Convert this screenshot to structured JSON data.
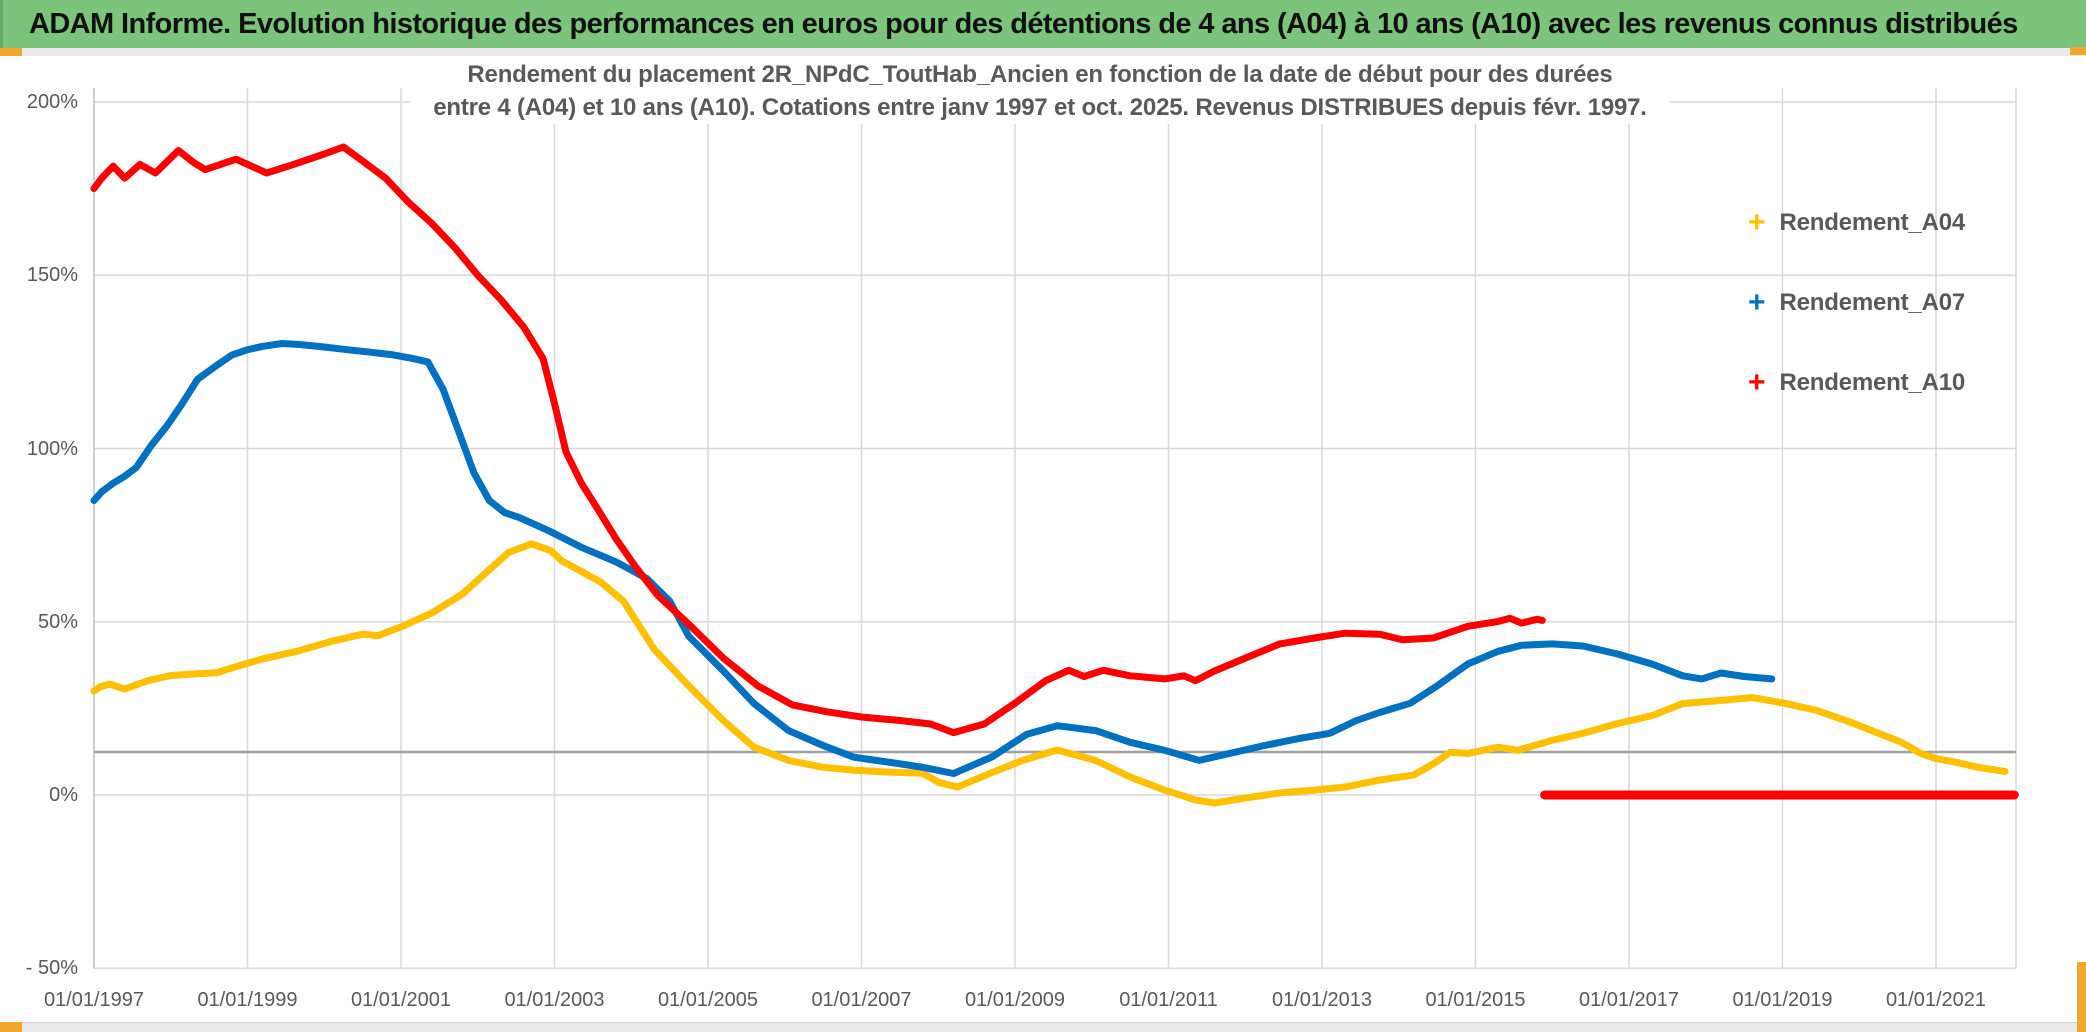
{
  "window": {
    "title": "ADAM Informe. Evolution historique des performances en euros pour des détentions de 4 ans (A04) à 10 ans (A10) avec les revenus connus distribués",
    "title_bar_color": "#7CC47C",
    "accent_color": "#F2A62B"
  },
  "chart_data": {
    "type": "line",
    "title_line1": "Rendement du placement 2R_NPdC_ToutHab_Ancien en fonction de la date de début pour des durées",
    "title_line2": "entre 4 (A04) et 10 ans (A10). Cotations entre janv 1997 et oct. 2025. Revenus DISTRIBUES depuis févr. 1997.",
    "ylabel": "",
    "xlabel": "",
    "grid": true,
    "legend_position": "right",
    "text_color": "#595959",
    "grid_color": "#D9D9D9",
    "axis_line_color": "#BFBFBF",
    "dark_reference_line": {
      "value_pct": 12.4,
      "color": "#A0A0A0"
    },
    "y_axis": {
      "min": -50,
      "max": 200,
      "step": 50,
      "ticks": [
        {
          "label": "200%",
          "value": 200
        },
        {
          "label": "150%",
          "value": 150
        },
        {
          "label": "100%",
          "value": 100
        },
        {
          "label": "50%",
          "value": 50
        },
        {
          "label": "0%",
          "value": 0
        },
        {
          "label": "- 50%",
          "value": -50
        }
      ]
    },
    "x_axis": {
      "start_year": 1997,
      "end_year": 2022.05,
      "ticks": [
        {
          "label": "01/01/1997",
          "year": 1997
        },
        {
          "label": "01/01/1999",
          "year": 1999
        },
        {
          "label": "01/01/2001",
          "year": 2001
        },
        {
          "label": "01/01/2003",
          "year": 2003
        },
        {
          "label": "01/01/2005",
          "year": 2005
        },
        {
          "label": "01/01/2007",
          "year": 2007
        },
        {
          "label": "01/01/2009",
          "year": 2009
        },
        {
          "label": "01/01/2011",
          "year": 2011
        },
        {
          "label": "01/01/2013",
          "year": 2013
        },
        {
          "label": "01/01/2015",
          "year": 2015
        },
        {
          "label": "01/01/2017",
          "year": 2017
        },
        {
          "label": "01/01/2019",
          "year": 2019
        },
        {
          "label": "01/01/2021",
          "year": 2021
        }
      ]
    },
    "series": [
      {
        "name": "Rendement_A04",
        "color": "#FFC000",
        "marker": "+",
        "in_legend": true,
        "width": 7,
        "points": [
          [
            1997.0,
            30
          ],
          [
            1997.08,
            31.2
          ],
          [
            1997.2,
            32
          ],
          [
            1997.4,
            30.6
          ],
          [
            1997.7,
            33
          ],
          [
            1998.0,
            34.5
          ],
          [
            1998.35,
            35
          ],
          [
            1998.6,
            35.3
          ],
          [
            1998.8,
            36.7
          ],
          [
            1999.2,
            39.3
          ],
          [
            1999.65,
            41.5
          ],
          [
            2000.1,
            44.4
          ],
          [
            2000.5,
            46.4
          ],
          [
            2000.7,
            46
          ],
          [
            2001.0,
            48.5
          ],
          [
            2001.4,
            52.5
          ],
          [
            2001.8,
            58
          ],
          [
            2002.1,
            64
          ],
          [
            2002.4,
            70
          ],
          [
            2002.7,
            72.5
          ],
          [
            2002.95,
            70.5
          ],
          [
            2003.1,
            67.5
          ],
          [
            2003.35,
            64.5
          ],
          [
            2003.6,
            61.5
          ],
          [
            2003.9,
            55.9
          ],
          [
            2004.1,
            49
          ],
          [
            2004.3,
            42
          ],
          [
            2004.75,
            31.5
          ],
          [
            2005.2,
            21.5
          ],
          [
            2005.6,
            13.8
          ],
          [
            2006.05,
            10
          ],
          [
            2006.5,
            8
          ],
          [
            2006.9,
            7.2
          ],
          [
            2007.35,
            6.6
          ],
          [
            2007.8,
            6.3
          ],
          [
            2008.0,
            3.7
          ],
          [
            2008.25,
            2.3
          ],
          [
            2008.65,
            6
          ],
          [
            2009.1,
            10
          ],
          [
            2009.55,
            13
          ],
          [
            2010.05,
            10
          ],
          [
            2010.5,
            5.2
          ],
          [
            2010.95,
            1.4
          ],
          [
            2011.35,
            -1.4
          ],
          [
            2011.6,
            -2.3
          ],
          [
            2012.0,
            -0.9
          ],
          [
            2012.45,
            0.6
          ],
          [
            2012.9,
            1.4
          ],
          [
            2013.3,
            2.3
          ],
          [
            2013.75,
            4.3
          ],
          [
            2014.2,
            5.8
          ],
          [
            2014.45,
            9
          ],
          [
            2014.67,
            12.3
          ],
          [
            2014.9,
            12
          ],
          [
            2015.3,
            13.8
          ],
          [
            2015.55,
            12.9
          ],
          [
            2016.0,
            15.8
          ],
          [
            2016.4,
            17.8
          ],
          [
            2016.85,
            20.6
          ],
          [
            2017.3,
            22.9
          ],
          [
            2017.7,
            26.4
          ],
          [
            2018.15,
            27.2
          ],
          [
            2018.6,
            28.1
          ],
          [
            2019.0,
            26.6
          ],
          [
            2019.45,
            24.4
          ],
          [
            2019.9,
            20.9
          ],
          [
            2020.25,
            17.8
          ],
          [
            2020.55,
            15.2
          ],
          [
            2020.8,
            12
          ],
          [
            2021.0,
            10.5
          ],
          [
            2021.25,
            9.5
          ],
          [
            2021.55,
            8
          ],
          [
            2021.9,
            6.8
          ]
        ]
      },
      {
        "name": "Rendement_A07",
        "color": "#0070C0",
        "marker": "+",
        "in_legend": true,
        "width": 7,
        "points": [
          [
            1997.0,
            85
          ],
          [
            1997.1,
            87.5
          ],
          [
            1997.25,
            90
          ],
          [
            1997.4,
            92
          ],
          [
            1997.55,
            94.5
          ],
          [
            1997.75,
            101
          ],
          [
            1997.95,
            106.5
          ],
          [
            1998.15,
            113
          ],
          [
            1998.35,
            120
          ],
          [
            1998.6,
            124
          ],
          [
            1998.8,
            127
          ],
          [
            1999.0,
            128.5
          ],
          [
            1999.2,
            129.5
          ],
          [
            1999.45,
            130.3
          ],
          [
            1999.7,
            130
          ],
          [
            2000.0,
            129.3
          ],
          [
            2000.3,
            128.5
          ],
          [
            2000.6,
            127.8
          ],
          [
            2000.9,
            127
          ],
          [
            2001.15,
            126
          ],
          [
            2001.35,
            125
          ],
          [
            2001.55,
            117
          ],
          [
            2001.75,
            105
          ],
          [
            2001.95,
            93
          ],
          [
            2002.15,
            85
          ],
          [
            2002.35,
            81.5
          ],
          [
            2002.55,
            80
          ],
          [
            2002.75,
            78
          ],
          [
            2002.95,
            76
          ],
          [
            2003.35,
            71.5
          ],
          [
            2003.8,
            67.3
          ],
          [
            2004.2,
            62.5
          ],
          [
            2004.5,
            56
          ],
          [
            2004.75,
            45.8
          ],
          [
            2005.2,
            35.8
          ],
          [
            2005.6,
            26.4
          ],
          [
            2006.05,
            18.6
          ],
          [
            2006.5,
            14.3
          ],
          [
            2006.9,
            10.9
          ],
          [
            2007.35,
            9.5
          ],
          [
            2007.8,
            8
          ],
          [
            2008.2,
            6.2
          ],
          [
            2008.7,
            11
          ],
          [
            2009.15,
            17.5
          ],
          [
            2009.55,
            20
          ],
          [
            2010.05,
            18.6
          ],
          [
            2010.5,
            15.2
          ],
          [
            2010.95,
            12.9
          ],
          [
            2011.4,
            10
          ],
          [
            2011.8,
            12
          ],
          [
            2012.25,
            14.3
          ],
          [
            2012.7,
            16.3
          ],
          [
            2013.1,
            17.8
          ],
          [
            2013.45,
            21.5
          ],
          [
            2013.75,
            23.8
          ],
          [
            2014.15,
            26.5
          ],
          [
            2014.5,
            31.5
          ],
          [
            2014.9,
            37.8
          ],
          [
            2015.3,
            41.5
          ],
          [
            2015.6,
            43.2
          ],
          [
            2016.0,
            43.6
          ],
          [
            2016.4,
            43
          ],
          [
            2016.85,
            40.7
          ],
          [
            2017.3,
            37.8
          ],
          [
            2017.7,
            34.4
          ],
          [
            2017.95,
            33.5
          ],
          [
            2018.2,
            35.2
          ],
          [
            2018.5,
            34.2
          ],
          [
            2018.86,
            33.5
          ]
        ]
      },
      {
        "name": "Rendement_A10",
        "color": "#FF0000",
        "marker": "+",
        "in_legend": true,
        "width": 7,
        "points": [
          [
            1997.0,
            175
          ],
          [
            1997.1,
            178
          ],
          [
            1997.25,
            181.5
          ],
          [
            1997.4,
            178
          ],
          [
            1997.6,
            182
          ],
          [
            1997.8,
            179.5
          ],
          [
            1998.1,
            186
          ],
          [
            1998.3,
            182.5
          ],
          [
            1998.45,
            180.5
          ],
          [
            1998.85,
            183.5
          ],
          [
            1999.25,
            179.5
          ],
          [
            1999.6,
            182
          ],
          [
            2000.0,
            185
          ],
          [
            2000.25,
            187
          ],
          [
            2000.5,
            183
          ],
          [
            2000.8,
            178
          ],
          [
            2001.1,
            171
          ],
          [
            2001.4,
            165
          ],
          [
            2001.7,
            158
          ],
          [
            2002.0,
            150
          ],
          [
            2002.3,
            143
          ],
          [
            2002.6,
            135
          ],
          [
            2002.85,
            126
          ],
          [
            2003.0,
            113
          ],
          [
            2003.15,
            99
          ],
          [
            2003.35,
            90
          ],
          [
            2003.55,
            83
          ],
          [
            2003.8,
            74
          ],
          [
            2004.05,
            66
          ],
          [
            2004.35,
            57.5
          ],
          [
            2004.75,
            49.3
          ],
          [
            2005.2,
            39.5
          ],
          [
            2005.65,
            31.5
          ],
          [
            2006.1,
            26
          ],
          [
            2006.55,
            24
          ],
          [
            2007.0,
            22.5
          ],
          [
            2007.5,
            21.5
          ],
          [
            2007.9,
            20.5
          ],
          [
            2008.2,
            18
          ],
          [
            2008.6,
            20.5
          ],
          [
            2009.0,
            26.5
          ],
          [
            2009.4,
            33
          ],
          [
            2009.7,
            36
          ],
          [
            2009.9,
            34.2
          ],
          [
            2010.15,
            36
          ],
          [
            2010.5,
            34.4
          ],
          [
            2010.95,
            33.5
          ],
          [
            2011.2,
            34.4
          ],
          [
            2011.35,
            33
          ],
          [
            2011.6,
            35.8
          ],
          [
            2012.0,
            39.5
          ],
          [
            2012.45,
            43.6
          ],
          [
            2012.9,
            45.3
          ],
          [
            2013.3,
            46.7
          ],
          [
            2013.75,
            46.4
          ],
          [
            2014.05,
            44.8
          ],
          [
            2014.45,
            45.3
          ],
          [
            2014.9,
            48.7
          ],
          [
            2015.3,
            50.1
          ],
          [
            2015.45,
            51
          ],
          [
            2015.6,
            49.6
          ],
          [
            2015.8,
            50.7
          ],
          [
            2015.87,
            50.4
          ]
        ]
      },
      {
        "name": "Rendement_A10",
        "color": "#FF0000",
        "marker": "+",
        "in_legend": false,
        "width": 9,
        "points": [
          [
            2015.9,
            0
          ],
          [
            2022.02,
            0
          ]
        ]
      }
    ]
  }
}
